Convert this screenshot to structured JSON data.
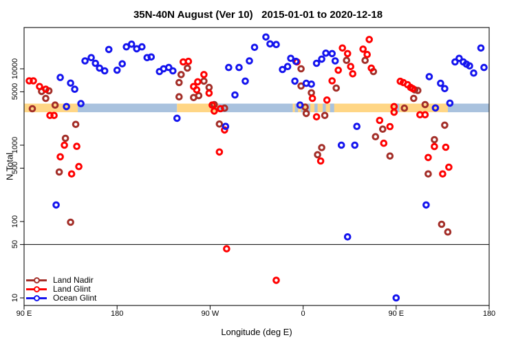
{
  "title": "35N-40N August (Ver 10)   2015-01-01 to 2020-12-18",
  "chart_data": {
    "type": "scatter",
    "title": "35N-40N August (Ver 10)   2015-01-01 to 2020-12-18",
    "xlabel": "Longitude (deg E)",
    "ylabel": "N Total",
    "x_axis": {
      "range": [
        90,
        540
      ],
      "ticks": [
        90,
        180,
        270,
        360,
        450,
        540
      ],
      "tick_labels": [
        "90 E",
        "180",
        "90 W",
        "0",
        "90 E",
        "180"
      ]
    },
    "y_axis": {
      "scale": "log",
      "range": [
        8,
        35000
      ],
      "ticks": [
        10,
        50,
        100,
        500,
        1000,
        5000,
        10000
      ],
      "tick_labels": [
        "10",
        "50",
        "100",
        "500",
        "1000",
        "5000",
        "10000"
      ]
    },
    "grid": "off",
    "legend_position": "bottom-left",
    "reference_line_y": 50,
    "surface_band": {
      "n_range": [
        2700,
        3500
      ],
      "land_color": "#FFD685",
      "ocean_color": "#A9C2DE",
      "segments": [
        {
          "from": 90,
          "to": 142,
          "surface": "land"
        },
        {
          "from": 142,
          "to": 238,
          "surface": "ocean"
        },
        {
          "from": 238,
          "to": 278,
          "surface": "land"
        },
        {
          "from": 278,
          "to": 350,
          "surface": "ocean"
        },
        {
          "from": 350,
          "to": 500,
          "surface": "land"
        },
        {
          "from": 500,
          "to": 540,
          "surface": "ocean"
        }
      ],
      "patches": [
        {
          "from": 352,
          "to": 355,
          "surface": "ocean"
        },
        {
          "from": 358,
          "to": 360,
          "surface": "ocean"
        },
        {
          "from": 364,
          "to": 367,
          "surface": "ocean"
        },
        {
          "from": 371,
          "to": 374,
          "surface": "ocean"
        },
        {
          "from": 379,
          "to": 382,
          "surface": "ocean"
        },
        {
          "from": 386,
          "to": 390,
          "surface": "ocean"
        },
        {
          "from": 449,
          "to": 453,
          "surface": "ocean"
        },
        {
          "from": 494,
          "to": 500,
          "surface": "land"
        }
      ]
    },
    "series": [
      {
        "name": "Land Nadir",
        "color": "#A32E28",
        "points": [
          [
            107,
            5050
          ],
          [
            114,
            5150
          ],
          [
            111,
            4100
          ],
          [
            98,
            3000
          ],
          [
            120,
            3350
          ],
          [
            140,
            1870
          ],
          [
            130,
            1230
          ],
          [
            124,
            445
          ],
          [
            135,
            98
          ],
          [
            248,
            10200
          ],
          [
            242,
            8400
          ],
          [
            240,
            6600
          ],
          [
            264,
            6900
          ],
          [
            269,
            5700
          ],
          [
            240,
            4300
          ],
          [
            254,
            4200
          ],
          [
            259,
            4450
          ],
          [
            274,
            3400
          ],
          [
            284,
            3050
          ],
          [
            279,
            1890
          ],
          [
            358,
            10000
          ],
          [
            358,
            5950
          ],
          [
            402,
            12900
          ],
          [
            420,
            12900
          ],
          [
            428,
            9200
          ],
          [
            392,
            5600
          ],
          [
            362,
            3150
          ],
          [
            363,
            2600
          ],
          [
            368,
            4850
          ],
          [
            381,
            2450
          ],
          [
            374,
            750
          ],
          [
            378,
            930
          ],
          [
            430,
            1290
          ],
          [
            437,
            1620
          ],
          [
            444,
            720
          ],
          [
            467,
            4100
          ],
          [
            468,
            5300
          ],
          [
            471,
            5200
          ],
          [
            458,
            3050
          ],
          [
            478,
            3400
          ],
          [
            487,
            1180
          ],
          [
            481,
            420
          ],
          [
            497,
            1830
          ],
          [
            494,
            92
          ],
          [
            500,
            73
          ]
        ]
      },
      {
        "name": "Land Glint",
        "color": "#FF0000",
        "points": [
          [
            95,
            6950
          ],
          [
            99,
            6950
          ],
          [
            105,
            5850
          ],
          [
            111,
            5400
          ],
          [
            115,
            2450
          ],
          [
            119,
            2450
          ],
          [
            129,
            1000
          ],
          [
            141,
            965
          ],
          [
            125,
            705
          ],
          [
            143,
            525
          ],
          [
            136,
            420
          ],
          [
            244,
            12300
          ],
          [
            249,
            12500
          ],
          [
            264,
            8400
          ],
          [
            258,
            6750
          ],
          [
            254,
            5850
          ],
          [
            257,
            5300
          ],
          [
            269,
            4800
          ],
          [
            272,
            3350
          ],
          [
            274,
            2800
          ],
          [
            280,
            3000
          ],
          [
            284,
            1580
          ],
          [
            279,
            815
          ],
          [
            286,
            44
          ],
          [
            334,
            17
          ],
          [
            354,
            12300
          ],
          [
            394,
            9600
          ],
          [
            398,
            18700
          ],
          [
            403,
            15800
          ],
          [
            406,
            10700
          ],
          [
            408,
            8600
          ],
          [
            418,
            18100
          ],
          [
            422,
            15400
          ],
          [
            424,
            24200
          ],
          [
            426,
            10200
          ],
          [
            388,
            6950
          ],
          [
            369,
            4100
          ],
          [
            373,
            2350
          ],
          [
            383,
            3900
          ],
          [
            377,
            620
          ],
          [
            434,
            2110
          ],
          [
            444,
            1750
          ],
          [
            438,
            1060
          ],
          [
            454,
            6850
          ],
          [
            457,
            6600
          ],
          [
            461,
            6200
          ],
          [
            464,
            5700
          ],
          [
            466,
            5500
          ],
          [
            448,
            3200
          ],
          [
            448,
            2700
          ],
          [
            473,
            2500
          ],
          [
            478,
            2500
          ],
          [
            487,
            960
          ],
          [
            498,
            940
          ],
          [
            481,
            690
          ],
          [
            501,
            515
          ],
          [
            495,
            420
          ]
        ]
      },
      {
        "name": "Ocean Glint",
        "color": "#1414EE",
        "points": [
          [
            125,
            7700
          ],
          [
            135,
            6500
          ],
          [
            139,
            5400
          ],
          [
            131,
            3200
          ],
          [
            145,
            3500
          ],
          [
            121,
            165
          ],
          [
            149,
            12700
          ],
          [
            155,
            14000
          ],
          [
            159,
            11800
          ],
          [
            163,
            10200
          ],
          [
            168,
            9400
          ],
          [
            172,
            17900
          ],
          [
            180,
            9600
          ],
          [
            185,
            11600
          ],
          [
            189,
            19400
          ],
          [
            194,
            21000
          ],
          [
            199,
            18300
          ],
          [
            204,
            19400
          ],
          [
            209,
            14000
          ],
          [
            213,
            14300
          ],
          [
            221,
            9200
          ],
          [
            225,
            10000
          ],
          [
            230,
            10400
          ],
          [
            234,
            9400
          ],
          [
            238,
            2250
          ],
          [
            285,
            1760
          ],
          [
            294,
            4550
          ],
          [
            288,
            10400
          ],
          [
            298,
            10400
          ],
          [
            304,
            6900
          ],
          [
            308,
            12700
          ],
          [
            313,
            19100
          ],
          [
            324,
            26100
          ],
          [
            328,
            21200
          ],
          [
            334,
            20800
          ],
          [
            340,
            9800
          ],
          [
            345,
            10700
          ],
          [
            348,
            13700
          ],
          [
            353,
            12500
          ],
          [
            352,
            6900
          ],
          [
            357,
            3350
          ],
          [
            363,
            6450
          ],
          [
            368,
            6300
          ],
          [
            373,
            11800
          ],
          [
            378,
            13400
          ],
          [
            382,
            16000
          ],
          [
            388,
            15800
          ],
          [
            391,
            12700
          ],
          [
            397,
            1000
          ],
          [
            410,
            1000
          ],
          [
            412,
            1760
          ],
          [
            403,
            63
          ],
          [
            479,
            165
          ],
          [
            450,
            10
          ],
          [
            488,
            3070
          ],
          [
            502,
            3550
          ],
          [
            493,
            6450
          ],
          [
            497,
            5500
          ],
          [
            482,
            7900
          ],
          [
            507,
            12300
          ],
          [
            511,
            13700
          ],
          [
            515,
            12300
          ],
          [
            518,
            11500
          ],
          [
            521,
            10900
          ],
          [
            525,
            8800
          ],
          [
            535,
            10400
          ],
          [
            532,
            18700
          ]
        ]
      }
    ]
  },
  "legend": {
    "items": [
      {
        "label": "Land Nadir"
      },
      {
        "label": "Land Glint"
      },
      {
        "label": "Ocean Glint"
      }
    ]
  }
}
